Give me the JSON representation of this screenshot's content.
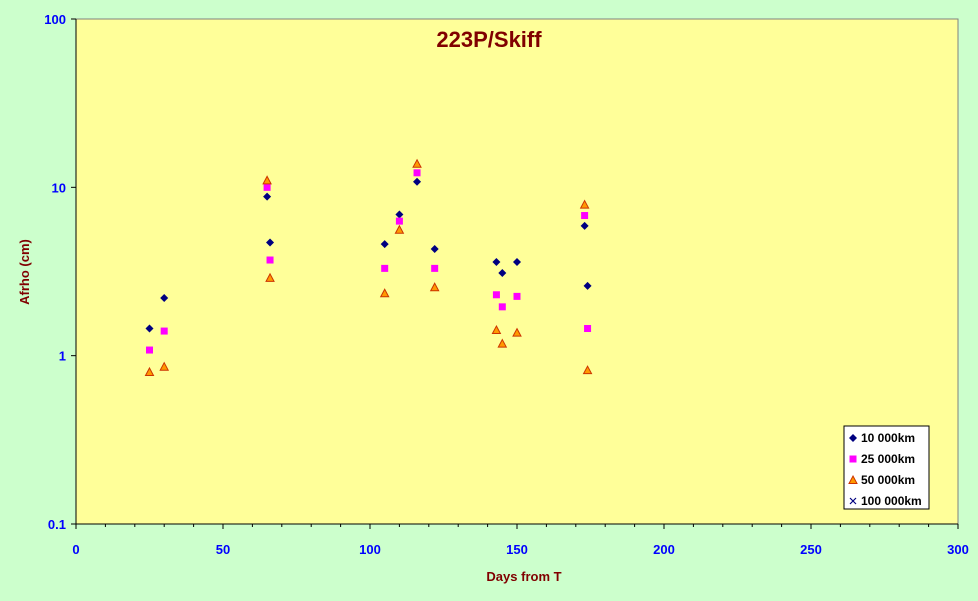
{
  "chart_data": {
    "type": "scatter",
    "title": "223P/Skiff",
    "xlabel": "Days from T",
    "ylabel": "Afrho (cm)",
    "xlim": [
      0,
      300
    ],
    "ylim": [
      0.1,
      100
    ],
    "y_scale": "log",
    "grid": false,
    "legend_position": "bottom-right",
    "x_ticks": [
      "0",
      "50",
      "100",
      "150",
      "200",
      "250",
      "300"
    ],
    "y_ticks": [
      "0.1",
      "1",
      "10",
      "100"
    ],
    "colors": {
      "plot_background": "#ffff99",
      "chart_background": "#ccffcc",
      "title": "#800000",
      "ticks": "#0000ff"
    },
    "series": [
      {
        "name": "10 000km",
        "marker": "diamond",
        "color": "#000080",
        "points": [
          [
            25,
            1.45
          ],
          [
            30,
            2.2
          ],
          [
            65,
            8.8
          ],
          [
            66,
            4.7
          ],
          [
            105,
            4.6
          ],
          [
            110,
            6.9
          ],
          [
            116,
            10.8
          ],
          [
            122,
            4.3
          ],
          [
            143,
            3.6
          ],
          [
            145,
            3.1
          ],
          [
            150,
            3.6
          ],
          [
            173,
            5.9
          ],
          [
            174,
            2.6
          ]
        ]
      },
      {
        "name": "25 000km",
        "marker": "square",
        "color": "#ff00ff",
        "points": [
          [
            25,
            1.08
          ],
          [
            30,
            1.4
          ],
          [
            65,
            10.0
          ],
          [
            66,
            3.7
          ],
          [
            105,
            3.3
          ],
          [
            110,
            6.3
          ],
          [
            116,
            12.2
          ],
          [
            122,
            3.3
          ],
          [
            143,
            2.3
          ],
          [
            145,
            1.95
          ],
          [
            150,
            2.25
          ],
          [
            173,
            6.8
          ],
          [
            174,
            1.45
          ]
        ]
      },
      {
        "name": "50 000km",
        "marker": "triangle",
        "color": "#ff9900",
        "edge": "#cc3300",
        "points": [
          [
            25,
            0.8
          ],
          [
            30,
            0.86
          ],
          [
            65,
            11.0
          ],
          [
            66,
            2.9
          ],
          [
            105,
            2.35
          ],
          [
            110,
            5.6
          ],
          [
            116,
            13.8
          ],
          [
            122,
            2.55
          ],
          [
            143,
            1.42
          ],
          [
            145,
            1.18
          ],
          [
            150,
            1.37
          ],
          [
            173,
            7.9
          ],
          [
            174,
            0.82
          ]
        ]
      },
      {
        "name": "100 000km",
        "marker": "x",
        "color": "#000080",
        "points": []
      }
    ]
  }
}
